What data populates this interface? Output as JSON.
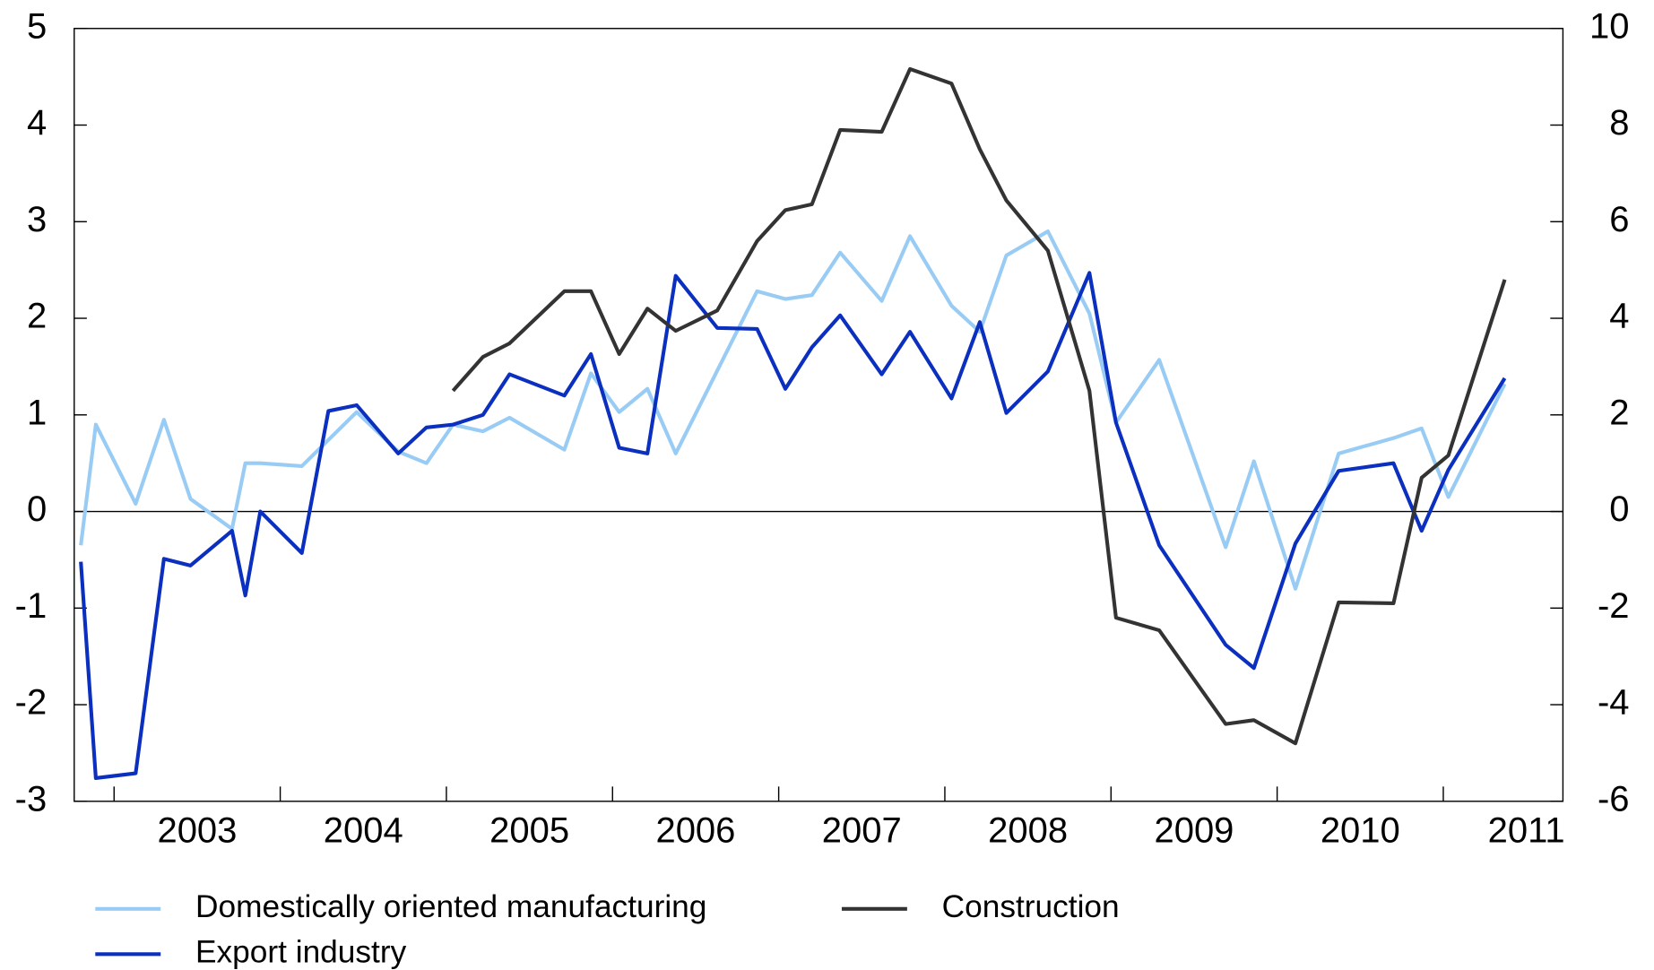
{
  "chart_data": {
    "type": "line",
    "xlim": [
      2002.76,
      2011.72
    ],
    "xticks": [
      2003,
      2004,
      2005,
      2006,
      2007,
      2008,
      2009,
      2010,
      2011
    ],
    "ylim": [
      -3,
      5
    ],
    "yticks": [
      -3,
      -2,
      -1,
      0,
      1,
      2,
      3,
      4,
      5
    ],
    "y2lim": [
      -6,
      10
    ],
    "y2ticks": [
      -6,
      -4,
      -2,
      0,
      2,
      4,
      6,
      8,
      10
    ],
    "zero_line": true,
    "series": [
      {
        "name": "Domestically oriented manufacturing",
        "color": "#99ccf5",
        "x": [
          2002.8,
          2002.89,
          2003.13,
          2003.3,
          2003.46,
          2003.71,
          2003.79,
          2003.88,
          2004.13,
          2004.46,
          2004.71,
          2004.88,
          2005.04,
          2005.22,
          2005.38,
          2005.71,
          2005.87,
          2006.04,
          2006.21,
          2006.38,
          2006.87,
          2007.04,
          2007.2,
          2007.37,
          2007.62,
          2007.79,
          2008.04,
          2008.21,
          2008.37,
          2008.62,
          2008.87,
          2009.03,
          2009.29,
          2009.69,
          2009.86,
          2010.11,
          2010.37,
          2010.7,
          2010.87,
          2011.03,
          2011.37
        ],
        "values": [
          -0.35,
          0.9,
          0.08,
          0.95,
          0.13,
          -0.18,
          0.5,
          0.5,
          0.47,
          1.03,
          0.62,
          0.5,
          0.9,
          0.83,
          0.97,
          0.64,
          1.43,
          1.03,
          1.27,
          0.6,
          2.28,
          2.2,
          2.24,
          2.68,
          2.18,
          2.85,
          2.13,
          1.86,
          2.65,
          2.9,
          2.05,
          0.92,
          1.57,
          -0.37,
          0.52,
          -0.8,
          0.6,
          0.76,
          0.86,
          0.15,
          1.32
        ]
      },
      {
        "name": "Export industry",
        "color": "#0b2fbf",
        "x": [
          2002.8,
          2002.89,
          2003.13,
          2003.3,
          2003.46,
          2003.71,
          2003.79,
          2003.88,
          2004.13,
          2004.29,
          2004.46,
          2004.71,
          2004.88,
          2005.04,
          2005.22,
          2005.38,
          2005.71,
          2005.87,
          2006.04,
          2006.21,
          2006.38,
          2006.63,
          2006.87,
          2007.04,
          2007.2,
          2007.37,
          2007.62,
          2007.79,
          2008.04,
          2008.21,
          2008.37,
          2008.62,
          2008.87,
          2009.03,
          2009.29,
          2009.69,
          2009.86,
          2010.11,
          2010.37,
          2010.7,
          2010.87,
          2011.03,
          2011.37
        ],
        "values": [
          -0.52,
          -2.76,
          -2.71,
          -0.49,
          -0.56,
          -0.2,
          -0.87,
          0.0,
          -0.43,
          1.04,
          1.1,
          0.6,
          0.87,
          0.9,
          1.0,
          1.42,
          1.2,
          1.63,
          0.66,
          0.6,
          2.44,
          1.9,
          1.89,
          1.27,
          1.7,
          2.03,
          1.42,
          1.86,
          1.17,
          1.96,
          1.02,
          1.45,
          2.47,
          0.92,
          -0.35,
          -1.38,
          -1.62,
          -0.33,
          0.42,
          0.5,
          -0.2,
          0.43,
          1.38
        ]
      },
      {
        "name": "Construction",
        "color": "#333333",
        "axis": "y2",
        "x": [
          2005.04,
          2005.22,
          2005.38,
          2005.71,
          2005.87,
          2006.04,
          2006.21,
          2006.38,
          2006.63,
          2006.87,
          2007.04,
          2007.2,
          2007.37,
          2007.62,
          2007.79,
          2008.04,
          2008.21,
          2008.37,
          2008.62,
          2008.87,
          2009.03,
          2009.29,
          2009.69,
          2009.86,
          2010.11,
          2010.37,
          2010.7,
          2010.87,
          2011.03,
          2011.37
        ],
        "values": [
          2.5,
          3.2,
          3.48,
          4.56,
          4.56,
          3.26,
          4.2,
          3.74,
          4.16,
          5.6,
          6.24,
          6.36,
          7.9,
          7.86,
          9.16,
          8.86,
          7.5,
          6.44,
          5.4,
          2.5,
          -2.2,
          -2.46,
          -4.4,
          -4.32,
          -4.8,
          -1.88,
          -1.9,
          0.7,
          1.16,
          4.8
        ]
      }
    ]
  }
}
